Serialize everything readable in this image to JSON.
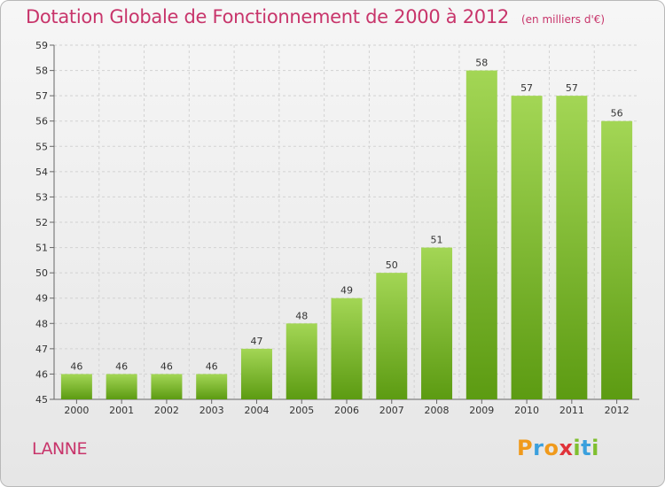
{
  "header": {
    "title": "Dotation Globale de Fonctionnement de 2000 à 2012",
    "subtitle": "(en milliers d'€)"
  },
  "footer": {
    "commune": "LANNE",
    "logo_text": "Proxiti"
  },
  "colors": {
    "accent": "#c8356b",
    "bar_light": "#a3d655",
    "bar_dark": "#5c9b12"
  },
  "chart_data": {
    "type": "bar",
    "title": "Dotation Globale de Fonctionnement de 2000 à 2012",
    "subtitle": "(en milliers d'€)",
    "categories": [
      "2000",
      "2001",
      "2002",
      "2003",
      "2004",
      "2005",
      "2006",
      "2007",
      "2008",
      "2009",
      "2010",
      "2011",
      "2012"
    ],
    "values": [
      46,
      46,
      46,
      46,
      47,
      48,
      49,
      50,
      51,
      58,
      57,
      57,
      56
    ],
    "ylim": [
      45,
      59
    ],
    "yticks": [
      45,
      46,
      47,
      48,
      49,
      50,
      51,
      52,
      53,
      54,
      55,
      56,
      57,
      58,
      59
    ],
    "grid": true,
    "data_labels": true
  }
}
